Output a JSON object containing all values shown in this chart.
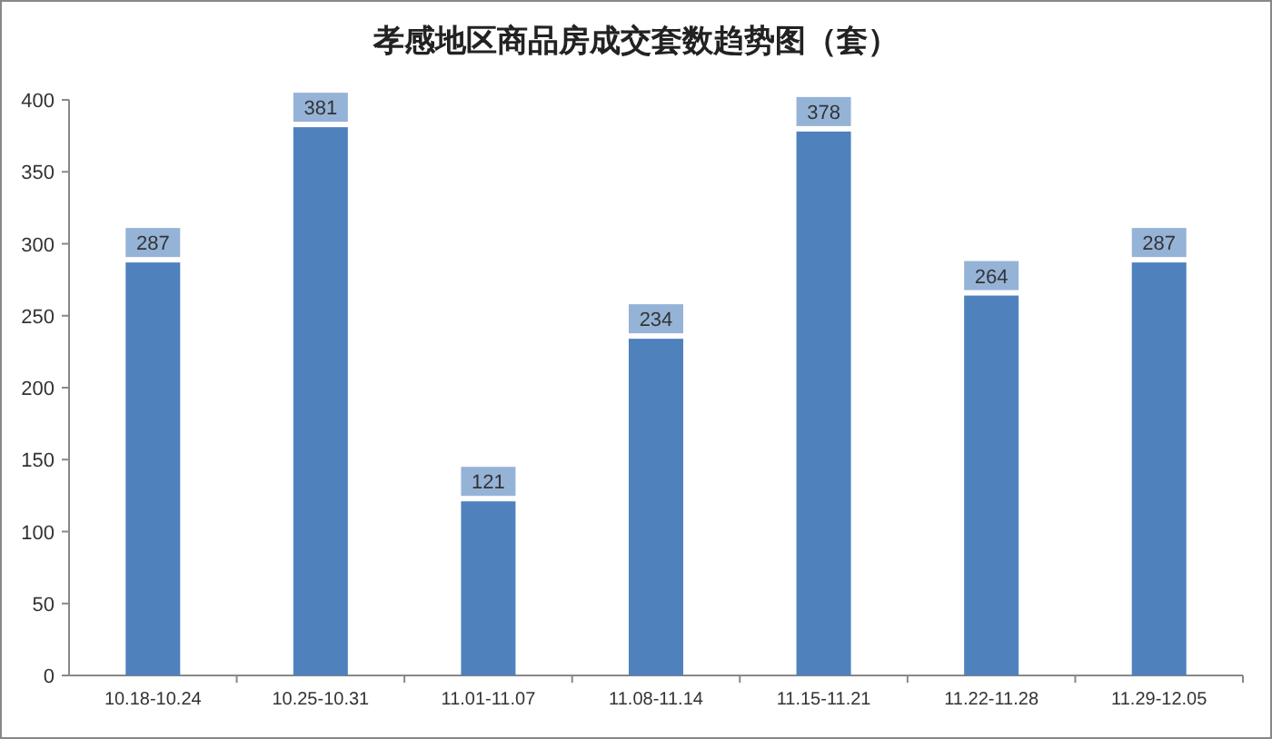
{
  "chart_data": {
    "type": "bar",
    "title": "孝感地区商品房成交套数趋势图（套）",
    "categories": [
      "10.18-10.24",
      "10.25-10.31",
      "11.01-11.07",
      "11.08-11.14",
      "11.15-11.21",
      "11.22-11.28",
      "11.29-12.05"
    ],
    "values": [
      287,
      381,
      121,
      234,
      378,
      264,
      287
    ],
    "color": "#4f81bd",
    "ylim": [
      0,
      400
    ],
    "yticks": [
      0,
      50,
      100,
      150,
      200,
      250,
      300,
      350,
      400
    ],
    "data_labels": true
  }
}
